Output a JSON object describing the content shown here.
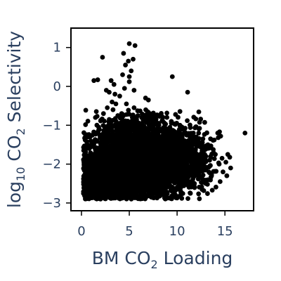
{
  "chart_data": {
    "type": "scatter",
    "title": "",
    "xlabel_parts": [
      "BM CO",
      "2",
      " Loading"
    ],
    "ylabel_parts": [
      "log",
      "10",
      " CO",
      "2",
      " Selectivity"
    ],
    "xlim": [
      -1.1,
      18.0
    ],
    "ylim": [
      -3.2,
      1.5
    ],
    "x_ticks": [
      {
        "value": 0,
        "label": "0"
      },
      {
        "value": 5,
        "label": "5"
      },
      {
        "value": 10,
        "label": "10"
      },
      {
        "value": 15,
        "label": "15"
      }
    ],
    "y_ticks": [
      {
        "value": 1,
        "label": "1"
      },
      {
        "value": 0,
        "label": "0"
      },
      {
        "value": -1,
        "label": "−1"
      },
      {
        "value": -2,
        "label": "−2"
      },
      {
        "value": -3,
        "label": "−3"
      }
    ],
    "grid": false,
    "marker_color": "#000000",
    "axis_text_color": "#2a3f5f",
    "points": [
      [
        5.0,
        1.1
      ],
      [
        5.6,
        1.05
      ],
      [
        4.4,
        0.85
      ],
      [
        2.2,
        0.75
      ],
      [
        5.4,
        0.7
      ],
      [
        4.9,
        0.65
      ],
      [
        4.6,
        0.55
      ],
      [
        5.2,
        0.4
      ],
      [
        4.3,
        0.3
      ],
      [
        5.0,
        0.25
      ],
      [
        9.5,
        0.25
      ],
      [
        1.3,
        0.15
      ],
      [
        1.7,
        0.17
      ],
      [
        3.1,
        0.15
      ],
      [
        5.0,
        0.12
      ],
      [
        3.4,
        0.05
      ],
      [
        4.5,
        -0.05
      ],
      [
        2.6,
        -0.1
      ],
      [
        5.5,
        -0.1
      ],
      [
        2.9,
        -0.15
      ],
      [
        11.1,
        -0.15
      ],
      [
        3.5,
        -0.2
      ],
      [
        4.0,
        -0.25
      ],
      [
        6.7,
        -0.3
      ],
      [
        7.0,
        -0.35
      ],
      [
        3.2,
        -0.4
      ],
      [
        3.6,
        -0.45
      ],
      [
        4.7,
        -0.45
      ],
      [
        2.7,
        -0.55
      ],
      [
        3.3,
        -0.6
      ],
      [
        5.5,
        -0.55
      ],
      [
        6.9,
        -0.65
      ],
      [
        2.3,
        -0.7
      ],
      [
        4.2,
        -0.7
      ],
      [
        3.8,
        -0.75
      ],
      [
        5.9,
        -0.75
      ],
      [
        7.3,
        -0.8
      ],
      [
        7.8,
        -0.85
      ],
      [
        2.9,
        -0.85
      ],
      [
        4.8,
        -0.9
      ],
      [
        6.5,
        -0.9
      ],
      [
        8.1,
        -0.95
      ],
      [
        9.4,
        -0.95
      ],
      [
        10.3,
        -1.0
      ],
      [
        1.8,
        -1.05
      ],
      [
        6.0,
        -1.05
      ],
      [
        7.6,
        -1.1
      ],
      [
        9.0,
        -1.1
      ],
      [
        10.6,
        -1.1
      ],
      [
        4.1,
        -1.15
      ],
      [
        8.3,
        -1.15
      ],
      [
        11.7,
        -1.2
      ],
      [
        17.1,
        -1.2
      ],
      [
        1.9,
        -1.25
      ],
      [
        7.1,
        -1.25
      ],
      [
        9.8,
        -1.3
      ],
      [
        12.0,
        -1.3
      ],
      [
        0.7,
        -1.3
      ],
      [
        13.5,
        -1.35
      ],
      [
        12.7,
        -1.35
      ],
      [
        14.3,
        -1.32
      ],
      [
        2.6,
        -1.4
      ],
      [
        10.8,
        -1.4
      ],
      [
        8.7,
        -1.45
      ],
      [
        11.4,
        -1.5
      ],
      [
        12.4,
        -1.55
      ],
      [
        13.1,
        -1.6
      ],
      [
        10.2,
        -1.65
      ],
      [
        13.8,
        -1.7
      ],
      [
        14.0,
        -1.75
      ],
      [
        15.3,
        -1.75
      ],
      [
        14.7,
        -1.85
      ],
      [
        13.4,
        -1.9
      ],
      [
        15.1,
        -1.95
      ],
      [
        14.4,
        -2.0
      ],
      [
        12.3,
        -2.05
      ],
      [
        15.6,
        -2.1
      ],
      [
        14.8,
        -2.2
      ],
      [
        13.6,
        -2.3
      ],
      [
        15.2,
        -2.3
      ],
      [
        14.5,
        -2.45
      ],
      [
        11.6,
        -2.5
      ],
      [
        13.0,
        -2.5
      ],
      [
        1.2,
        -1.8
      ],
      [
        1.5,
        -2.0
      ],
      [
        1.0,
        -2.15
      ],
      [
        0.5,
        -2.3
      ],
      [
        0.3,
        -2.5
      ],
      [
        0.4,
        -2.7
      ],
      [
        0.6,
        -2.8
      ],
      [
        0.9,
        -2.85
      ],
      [
        1.4,
        -2.8
      ],
      [
        1.7,
        -2.7
      ],
      [
        2.2,
        -2.85
      ],
      [
        2.6,
        -2.65
      ],
      [
        3.0,
        -2.7
      ],
      [
        3.9,
        -2.7
      ],
      [
        4.8,
        -2.75
      ],
      [
        5.5,
        -2.7
      ],
      [
        6.3,
        -2.6
      ],
      [
        7.5,
        -2.6
      ],
      [
        8.6,
        -2.5
      ],
      [
        9.6,
        -2.45
      ],
      [
        10.7,
        -2.3
      ]
    ],
    "clusters": [
      {
        "cx": 4.6,
        "cy": -2.05,
        "sx": 2.4,
        "sy": 0.42,
        "n": 2200
      },
      {
        "cx": 7.8,
        "cy": -1.9,
        "sx": 1.9,
        "sy": 0.5,
        "n": 900
      },
      {
        "cx": 2.0,
        "cy": -2.4,
        "sx": 0.9,
        "sy": 0.3,
        "n": 700
      },
      {
        "cx": 10.8,
        "cy": -1.85,
        "sx": 1.5,
        "sy": 0.42,
        "n": 500
      },
      {
        "cx": 5.2,
        "cy": -1.35,
        "sx": 1.8,
        "sy": 0.35,
        "n": 400
      }
    ]
  }
}
